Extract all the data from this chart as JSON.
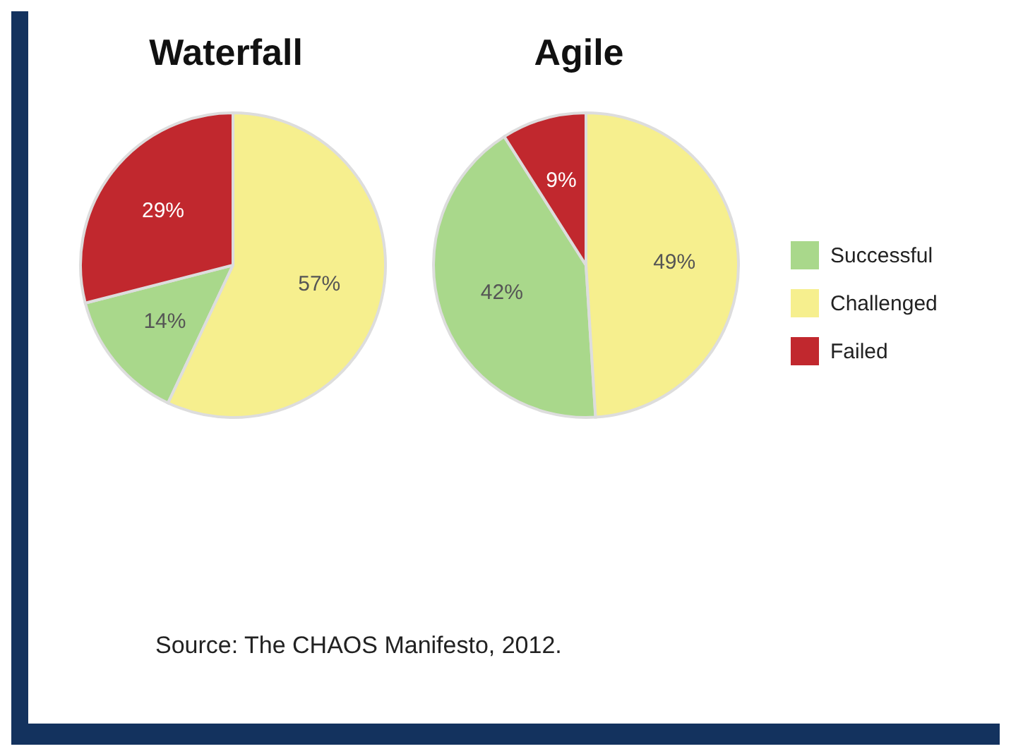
{
  "chart_data": {
    "type": "pie",
    "categories": [
      "Successful",
      "Challenged",
      "Failed"
    ],
    "colors": [
      "#a9d88b",
      "#f6ef8e",
      "#c1282e"
    ],
    "legend": "right",
    "annotations": [
      "Source: The CHAOS Manifesto, 2012."
    ],
    "series": [
      {
        "name": "Waterfall",
        "values": [
          14,
          57,
          29
        ],
        "value_labels": [
          "14%",
          "57%",
          "29%"
        ]
      },
      {
        "name": "Agile",
        "values": [
          42,
          49,
          9
        ],
        "value_labels": [
          "42%",
          "49%",
          "9%"
        ]
      }
    ]
  }
}
